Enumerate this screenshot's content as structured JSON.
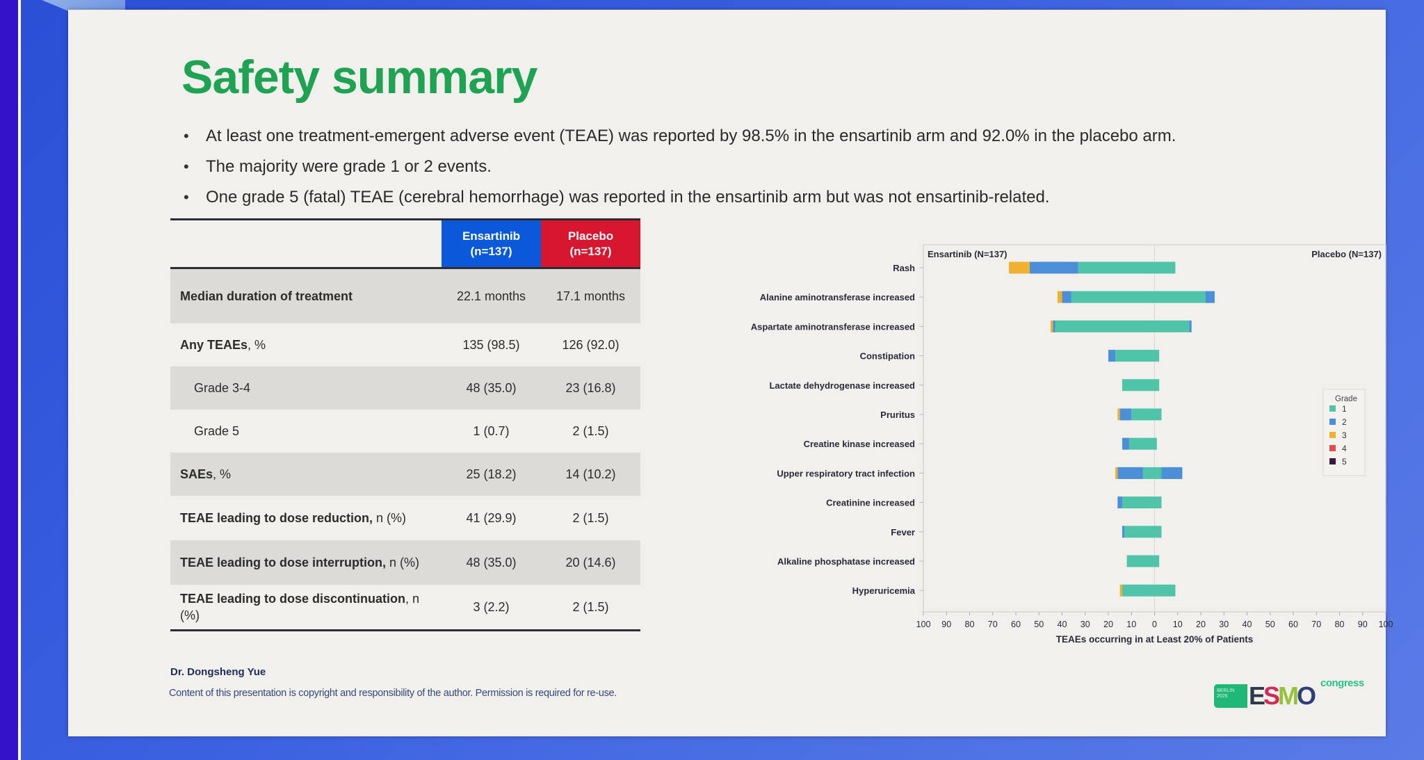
{
  "slide": {
    "title": "Safety summary",
    "bullets": [
      "At least one treatment-emergent adverse event (TEAE) was reported by 98.5% in the ensartinib arm and 92.0% in the placebo arm.",
      "The majority were grade 1 or 2 events.",
      "One grade 5 (fatal) TEAE (cerebral hemorrhage) was reported in the ensartinib arm but was not ensartinib-related."
    ],
    "author": "Dr. Dongsheng Yue",
    "copyright": "Content of this presentation is copyright and responsibility of the author. Permission is required for re-use.",
    "logo": {
      "city": "BERLIN 2025",
      "letters": [
        "E",
        "S",
        "M",
        "O"
      ],
      "suffix": "congress"
    }
  },
  "table": {
    "columns": [
      {
        "name": "Ensartinib",
        "n": "(n=137)",
        "color": "#0b59db"
      },
      {
        "name": "Placebo",
        "n": "(n=137)",
        "color": "#d7162f"
      }
    ],
    "rows": [
      {
        "label": "Median duration of treatment",
        "style": "bold",
        "shade": true,
        "ensartinib": "22.1 months",
        "placebo": "17.1 months"
      },
      {
        "label_bold": "Any TEAEs",
        "label_rest": ", %",
        "style": "mixed",
        "shade": false,
        "ensartinib": "135 (98.5)",
        "placebo": "126 (92.0)"
      },
      {
        "label": "Grade 3-4",
        "style": "indent",
        "shade": true,
        "ensartinib": "48 (35.0)",
        "placebo": "23 (16.8)"
      },
      {
        "label": "Grade 5",
        "style": "indent",
        "shade": false,
        "ensartinib": "1 (0.7)",
        "placebo": "2 (1.5)"
      },
      {
        "label_bold": "SAEs",
        "label_rest": ", %",
        "style": "mixed",
        "shade": true,
        "ensartinib": "25 (18.2)",
        "placebo": "14 (10.2)"
      },
      {
        "label_bold": "TEAE leading to dose reduction,",
        "label_rest": " n (%)",
        "style": "mixed",
        "shade": false,
        "ensartinib": "41 (29.9)",
        "placebo": "2 (1.5)"
      },
      {
        "label_bold": "TEAE leading to dose interruption,",
        "label_rest": " n (%)",
        "style": "mixed",
        "shade": true,
        "ensartinib": "48 (35.0)",
        "placebo": "20 (14.6)"
      },
      {
        "label_bold": "TEAE leading to dose discontinuation",
        "label_rest": ", n (%)",
        "style": "mixed",
        "shade": false,
        "ensartinib": "3 (2.2)",
        "placebo": "2 (1.5)"
      }
    ]
  },
  "chart_data": {
    "type": "bar",
    "orientation": "horizontal-butterfly-stacked",
    "xlabel": "TEAEs occurring in at Least 20% of Patients",
    "left_label": "Ensartinib (N=137)",
    "right_label": "Placebo (N=137)",
    "xlim": [
      -100,
      100
    ],
    "xticks": [
      "100",
      "90",
      "80",
      "70",
      "60",
      "50",
      "40",
      "30",
      "20",
      "10",
      "0",
      "10",
      "20",
      "30",
      "40",
      "50",
      "60",
      "70",
      "80",
      "90",
      "100"
    ],
    "legend": {
      "title": "Grade",
      "position": "right",
      "entries": [
        {
          "label": "1",
          "color": "#4fc4a8"
        },
        {
          "label": "2",
          "color": "#4a8fd8"
        },
        {
          "label": "3",
          "color": "#f0b030"
        },
        {
          "label": "4",
          "color": "#e84a4a"
        },
        {
          "label": "5",
          "color": "#3a1a3a"
        }
      ]
    },
    "categories": [
      "Rash",
      "Alanine aminotransferase increased",
      "Aspartate aminotransferase increased",
      "Constipation",
      "Lactate dehydrogenase increased",
      "Pruritus",
      "Creatine kinase increased",
      "Upper respiratory tract infection",
      "Creatinine increased",
      "Fever",
      "Alkaline phosphatase increased",
      "Hyperuricemia"
    ],
    "series": [
      {
        "name": "Ensartinib",
        "side": "left",
        "grades": {
          "1": [
            33,
            36,
            43,
            17,
            14,
            10,
            11,
            5,
            14,
            13,
            12,
            14
          ],
          "2": [
            21,
            4,
            1,
            3,
            0,
            5,
            3,
            11,
            2,
            1,
            0,
            0
          ],
          "3": [
            9,
            2,
            1,
            0,
            0,
            1,
            0,
            1,
            0,
            0,
            0,
            1
          ],
          "4": [
            0,
            0,
            0,
            0,
            0,
            0,
            0,
            0,
            0,
            0,
            0,
            0
          ],
          "5": [
            0,
            0,
            0,
            0,
            0,
            0,
            0,
            0,
            0,
            0,
            0,
            0
          ]
        }
      },
      {
        "name": "Placebo",
        "side": "right",
        "grades": {
          "1": [
            9,
            22,
            15,
            2,
            2,
            3,
            1,
            3,
            3,
            3,
            2,
            9
          ],
          "2": [
            0,
            4,
            1,
            0,
            0,
            0,
            0,
            9,
            0,
            0,
            0,
            0
          ],
          "3": [
            0,
            0,
            0,
            0,
            0,
            0,
            0,
            0,
            0,
            0,
            0,
            0
          ],
          "4": [
            0,
            0,
            0,
            0,
            0,
            0,
            0,
            0,
            0,
            0,
            0,
            0
          ],
          "5": [
            0,
            0,
            0,
            0,
            0,
            0,
            0,
            0,
            0,
            0,
            0,
            0
          ]
        }
      }
    ]
  }
}
